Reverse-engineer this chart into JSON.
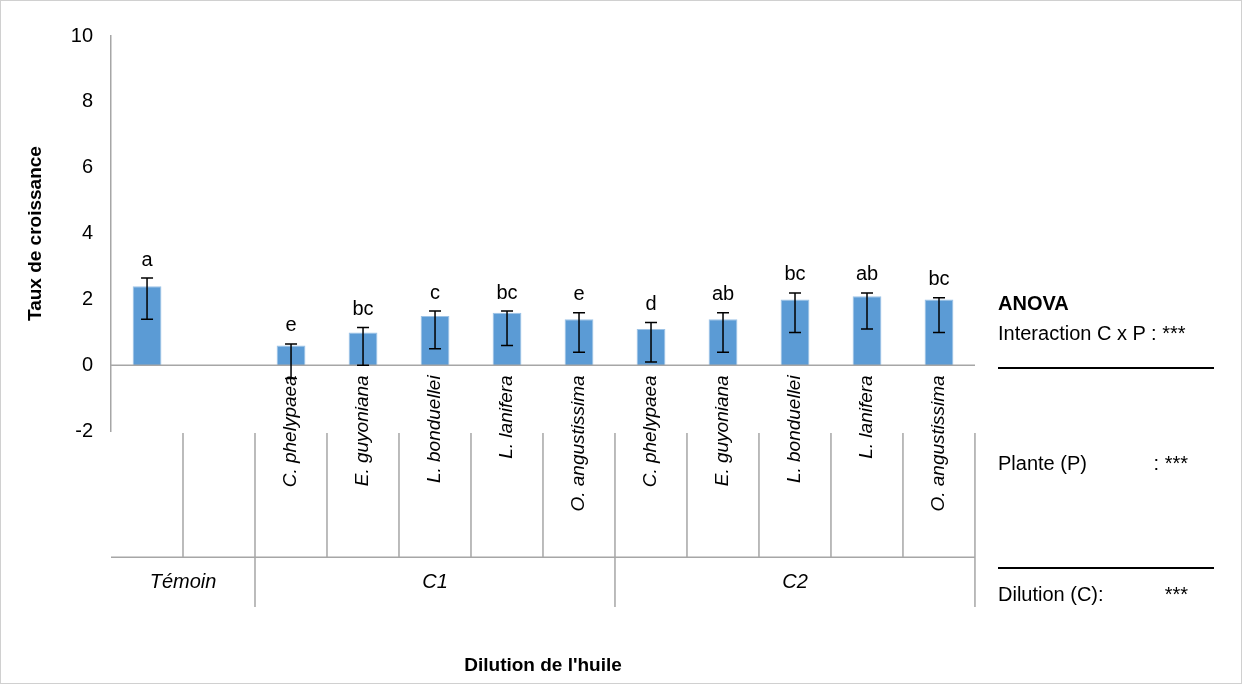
{
  "chart_data": {
    "type": "bar",
    "ylabel": "Taux de croissance",
    "categories": [
      null,
      null,
      "C. phelypaea",
      "E. guyoniana",
      "L. bonduellei",
      "L. lanifera",
      "O. angustissima",
      "C. phelypaea",
      "E. guyoniana",
      "L. bonduellei",
      "L. lanifera",
      "O. angustissima"
    ],
    "values": [
      2.4,
      null,
      0.6,
      1.0,
      1.5,
      1.6,
      1.4,
      1.1,
      1.4,
      2.0,
      2.1,
      2.0
    ],
    "errors": [
      [
        1.4,
        2.65
      ],
      null,
      [
        -0.4,
        0.65
      ],
      [
        0,
        1.15
      ],
      [
        0.5,
        1.65
      ],
      [
        0.6,
        1.65
      ],
      [
        0.4,
        1.6
      ],
      [
        0.1,
        1.3
      ],
      [
        0.4,
        1.6
      ],
      [
        1.0,
        2.2
      ],
      [
        1.1,
        2.2
      ],
      [
        1.0,
        2.05
      ]
    ],
    "value_labels": [
      "a",
      null,
      "e",
      "bc",
      "c",
      "bc",
      "e",
      "d",
      "ab",
      "bc",
      "ab",
      "bc"
    ],
    "color": "#5b9bd5",
    "ylim": [
      -2,
      10
    ],
    "yticks": [
      -2,
      0,
      2,
      4,
      6,
      8,
      10
    ],
    "grid": false,
    "legend": false,
    "annotations": [
      "Témoin",
      "C1",
      "C2",
      "Dilution de l'huile",
      "ANOVA",
      "Interaction C x P : ***",
      "Plante (P)            : ***",
      "Dilution (C):           ***"
    ]
  }
}
